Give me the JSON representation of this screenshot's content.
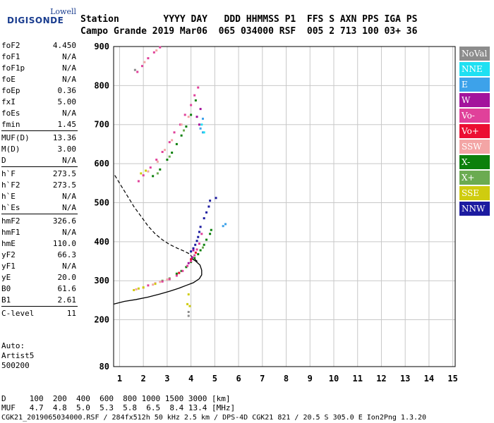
{
  "logo": {
    "top": "Lowell",
    "main": "DIGISONDE"
  },
  "header": {
    "line1": "Station        YYYY DAY   DDD HHMMSS P1  FFS S AXN PPS IGA PS",
    "line2": "Campo Grande 2019 Mar06  065 034000 RSF  005 2 713 100 03+ 36"
  },
  "params": [
    {
      "k": "foF2",
      "v": "4.450"
    },
    {
      "k": "foF1",
      "v": "N/A"
    },
    {
      "k": "foF1p",
      "v": "N/A"
    },
    {
      "k": "foE",
      "v": "N/A"
    },
    {
      "k": "foEp",
      "v": "0.36"
    },
    {
      "k": "fxI",
      "v": "5.00"
    },
    {
      "k": "foEs",
      "v": "N/A"
    },
    {
      "k": "fmin",
      "v": "1.45"
    },
    {
      "k": "MUF(D)",
      "v": "13.36"
    },
    {
      "k": "M(D)",
      "v": "3.00"
    },
    {
      "k": "D",
      "v": "N/A"
    },
    {
      "k": "h`F",
      "v": "273.5"
    },
    {
      "k": "h`F2",
      "v": "273.5"
    },
    {
      "k": "h`E",
      "v": "N/A"
    },
    {
      "k": "h`Es",
      "v": "N/A"
    },
    {
      "k": "hmF2",
      "v": "326.6"
    },
    {
      "k": "hmF1",
      "v": "N/A"
    },
    {
      "k": "hmE",
      "v": "110.0"
    },
    {
      "k": "yF2",
      "v": "66.3"
    },
    {
      "k": "yF1",
      "v": "N/A"
    },
    {
      "k": "yE",
      "v": "20.0"
    },
    {
      "k": "B0",
      "v": "61.6"
    },
    {
      "k": "B1",
      "v": "2.61"
    },
    {
      "k": "C-level",
      "v": "11"
    }
  ],
  "auto": {
    "l1": "Auto:",
    "l2": "Artist5",
    "l3": "500200"
  },
  "modes": [
    {
      "label": "NoVal",
      "color": "#8c8c8c"
    },
    {
      "label": "NNE",
      "color": "#1fe0f2"
    },
    {
      "label": "E",
      "color": "#3da2ea"
    },
    {
      "label": "W",
      "color": "#a3139c"
    },
    {
      "label": "Vo-",
      "color": "#e0419a"
    },
    {
      "label": "Vo+",
      "color": "#ec0e32"
    },
    {
      "label": "SSW",
      "color": "#f3a5a5"
    },
    {
      "label": "X-",
      "color": "#0c800c"
    },
    {
      "label": "X+",
      "color": "#6bab51"
    },
    {
      "label": "SSE",
      "color": "#cfcc0f"
    },
    {
      "label": "NNW",
      "color": "#1c1ba0"
    }
  ],
  "footer": {
    "line1": "D     100  200  400  600  800 1000 1500 3000 [km]",
    "line2": "MUF   4.7  4.8  5.0  5.3  5.8  6.5  8.4 13.4 [MHz]",
    "line3": "CGK21_2019065034000.RSF / 284fx512h 50 kHz 2.5 km / DPS-4D CGK21 821 / 20.5 S 305.0 E Ion2Png 1.3.20"
  },
  "chart_data": {
    "type": "scatter",
    "xlim": [
      0.75,
      15.1
    ],
    "ylim": [
      80,
      900
    ],
    "xticks": [
      1,
      2,
      3,
      4,
      5,
      6,
      7,
      8,
      9,
      10,
      11,
      12,
      13,
      14,
      15
    ],
    "yticks": [
      80,
      200,
      300,
      400,
      500,
      600,
      700,
      800,
      900
    ],
    "grid": true,
    "series": [
      {
        "name": "NNW",
        "color": "#1c1ba0",
        "points": [
          [
            4.0,
            375
          ],
          [
            4.1,
            383
          ],
          [
            4.18,
            392
          ],
          [
            4.25,
            402
          ],
          [
            4.3,
            412
          ],
          [
            4.35,
            425
          ],
          [
            4.4,
            438
          ],
          [
            4.55,
            460
          ],
          [
            4.65,
            475
          ],
          [
            4.75,
            490
          ],
          [
            4.8,
            505
          ],
          [
            5.05,
            512
          ]
        ]
      },
      {
        "name": "X-",
        "color": "#0c800c",
        "points": [
          [
            3.4,
            318
          ],
          [
            3.6,
            325
          ],
          [
            3.8,
            335
          ],
          [
            4.0,
            348
          ],
          [
            4.15,
            358
          ],
          [
            4.3,
            368
          ],
          [
            4.4,
            378
          ],
          [
            4.55,
            392
          ],
          [
            4.65,
            405
          ],
          [
            4.8,
            420
          ],
          [
            4.85,
            430
          ],
          [
            2.4,
            568
          ],
          [
            2.7,
            585
          ],
          [
            3.0,
            610
          ],
          [
            3.2,
            628
          ],
          [
            3.4,
            650
          ],
          [
            3.6,
            672
          ],
          [
            3.8,
            695
          ],
          [
            4.0,
            725
          ],
          [
            4.2,
            762
          ]
        ]
      },
      {
        "name": "X+",
        "color": "#6bab51",
        "points": [
          [
            2.8,
            300
          ],
          [
            3.1,
            306
          ],
          [
            3.5,
            320
          ],
          [
            4.5,
            385
          ],
          [
            2.6,
            575
          ],
          [
            3.1,
            618
          ],
          [
            3.7,
            685
          ]
        ]
      },
      {
        "name": "Vo-",
        "color": "#e0419a",
        "points": [
          [
            2.2,
            288
          ],
          [
            2.5,
            293
          ],
          [
            2.8,
            298
          ],
          [
            3.1,
            304
          ],
          [
            3.4,
            313
          ],
          [
            3.65,
            325
          ],
          [
            3.85,
            338
          ],
          [
            4.0,
            350
          ],
          [
            4.15,
            365
          ],
          [
            4.25,
            380
          ],
          [
            4.35,
            395
          ],
          [
            4.45,
            420
          ],
          [
            1.8,
            555
          ],
          [
            2.0,
            570
          ],
          [
            2.3,
            590
          ],
          [
            2.55,
            610
          ],
          [
            2.8,
            630
          ],
          [
            3.1,
            655
          ],
          [
            3.3,
            680
          ],
          [
            3.55,
            700
          ],
          [
            3.75,
            725
          ],
          [
            4.0,
            750
          ],
          [
            4.15,
            775
          ],
          [
            4.3,
            795
          ],
          [
            1.75,
            835
          ],
          [
            1.95,
            850
          ],
          [
            2.2,
            870
          ],
          [
            2.45,
            885
          ],
          [
            2.7,
            898
          ]
        ]
      },
      {
        "name": "Vo+",
        "color": "#ec0e32",
        "points": [
          [
            3.5,
            320
          ],
          [
            4.0,
            355
          ],
          [
            4.2,
            372
          ]
        ]
      },
      {
        "name": "SSW",
        "color": "#f3a5a5",
        "points": [
          [
            1.7,
            278
          ],
          [
            2.0,
            282
          ],
          [
            2.4,
            290
          ],
          [
            2.7,
            297
          ],
          [
            3.0,
            303
          ],
          [
            2.2,
            580
          ],
          [
            2.6,
            605
          ],
          [
            2.9,
            635
          ],
          [
            3.2,
            660
          ],
          [
            3.6,
            700
          ],
          [
            3.9,
            720
          ],
          [
            2.05,
            860
          ],
          [
            2.55,
            890
          ]
        ]
      },
      {
        "name": "W",
        "color": "#a3139c",
        "points": [
          [
            3.9,
            345
          ],
          [
            4.05,
            360
          ],
          [
            4.1,
            378
          ],
          [
            4.35,
            700
          ],
          [
            4.25,
            720
          ],
          [
            4.4,
            740
          ]
        ]
      },
      {
        "name": "SSE",
        "color": "#cfcc0f",
        "points": [
          [
            1.6,
            276
          ],
          [
            1.8,
            280
          ],
          [
            2.0,
            283
          ],
          [
            2.5,
            292
          ],
          [
            3.9,
            265
          ],
          [
            3.85,
            240
          ],
          [
            3.95,
            235
          ],
          [
            2.1,
            582
          ],
          [
            1.9,
            575
          ]
        ]
      },
      {
        "name": "E",
        "color": "#3da2ea",
        "points": [
          [
            5.35,
            440
          ],
          [
            5.45,
            445
          ],
          [
            4.5,
            680
          ],
          [
            4.4,
            690
          ],
          [
            4.5,
            715
          ]
        ]
      },
      {
        "name": "NNE",
        "color": "#1fe0f2",
        "points": [
          [
            4.55,
            680
          ],
          [
            4.45,
            700
          ]
        ]
      },
      {
        "name": "NoVal",
        "color": "#8c8c8c",
        "points": [
          [
            3.9,
            220
          ],
          [
            3.9,
            210
          ],
          [
            1.65,
            840
          ]
        ]
      }
    ],
    "profile_solid": [
      [
        0.75,
        240
      ],
      [
        1.2,
        247
      ],
      [
        1.7,
        252
      ],
      [
        2.2,
        258
      ],
      [
        2.7,
        266
      ],
      [
        3.1,
        273
      ],
      [
        3.5,
        281
      ],
      [
        3.8,
        288
      ],
      [
        4.1,
        295
      ],
      [
        4.35,
        305
      ],
      [
        4.45,
        315
      ],
      [
        4.45,
        327
      ],
      [
        4.38,
        340
      ],
      [
        4.2,
        350
      ],
      [
        4.0,
        358
      ]
    ],
    "profile_dashed": [
      [
        0.8,
        570
      ],
      [
        1.0,
        550
      ],
      [
        1.3,
        520
      ],
      [
        1.6,
        490
      ],
      [
        1.9,
        465
      ],
      [
        2.2,
        440
      ],
      [
        2.5,
        420
      ],
      [
        2.8,
        405
      ],
      [
        3.1,
        393
      ],
      [
        3.4,
        384
      ],
      [
        3.7,
        376
      ],
      [
        3.9,
        370
      ],
      [
        4.1,
        358
      ],
      [
        4.3,
        348
      ]
    ]
  }
}
